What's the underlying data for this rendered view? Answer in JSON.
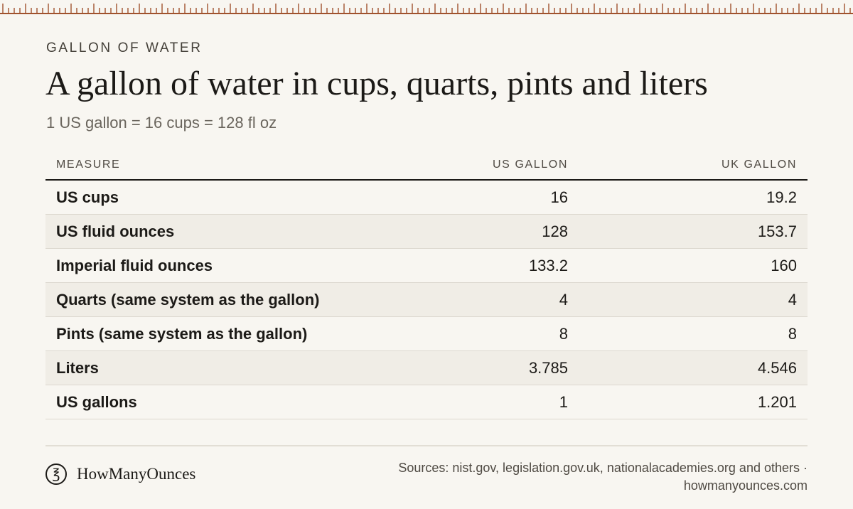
{
  "theme": {
    "accent": "#a0522d",
    "background": "#f8f6f1",
    "row_alt": "#f0ede6"
  },
  "header": {
    "eyebrow": "GALLON OF WATER",
    "title": "A gallon of water in cups, quarts, pints and liters",
    "subtitle": "1 US gallon = 16 cups = 128 fl oz"
  },
  "table": {
    "columns": [
      "MEASURE",
      "US GALLON",
      "UK GALLON"
    ],
    "rows": [
      {
        "measure": "US cups",
        "us": "16",
        "uk": "19.2"
      },
      {
        "measure": "US fluid ounces",
        "us": "128",
        "uk": "153.7"
      },
      {
        "measure": "Imperial fluid ounces",
        "us": "133.2",
        "uk": "160"
      },
      {
        "measure": "Quarts (same system as the gallon)",
        "us": "4",
        "uk": "4"
      },
      {
        "measure": "Pints (same system as the gallon)",
        "us": "8",
        "uk": "8"
      },
      {
        "measure": "Liters",
        "us": "3.785",
        "uk": "4.546"
      },
      {
        "measure": "US gallons",
        "us": "1",
        "uk": "1.201"
      }
    ]
  },
  "footer": {
    "logo_icon": "ounce-glyph-icon",
    "logo_glyph": "℥",
    "brand": "HowManyOunces",
    "sources_line1": "Sources: nist.gov, legislation.gov.uk, nationalacademies.org and others ·",
    "sources_line2": "howmanyounces.com"
  }
}
